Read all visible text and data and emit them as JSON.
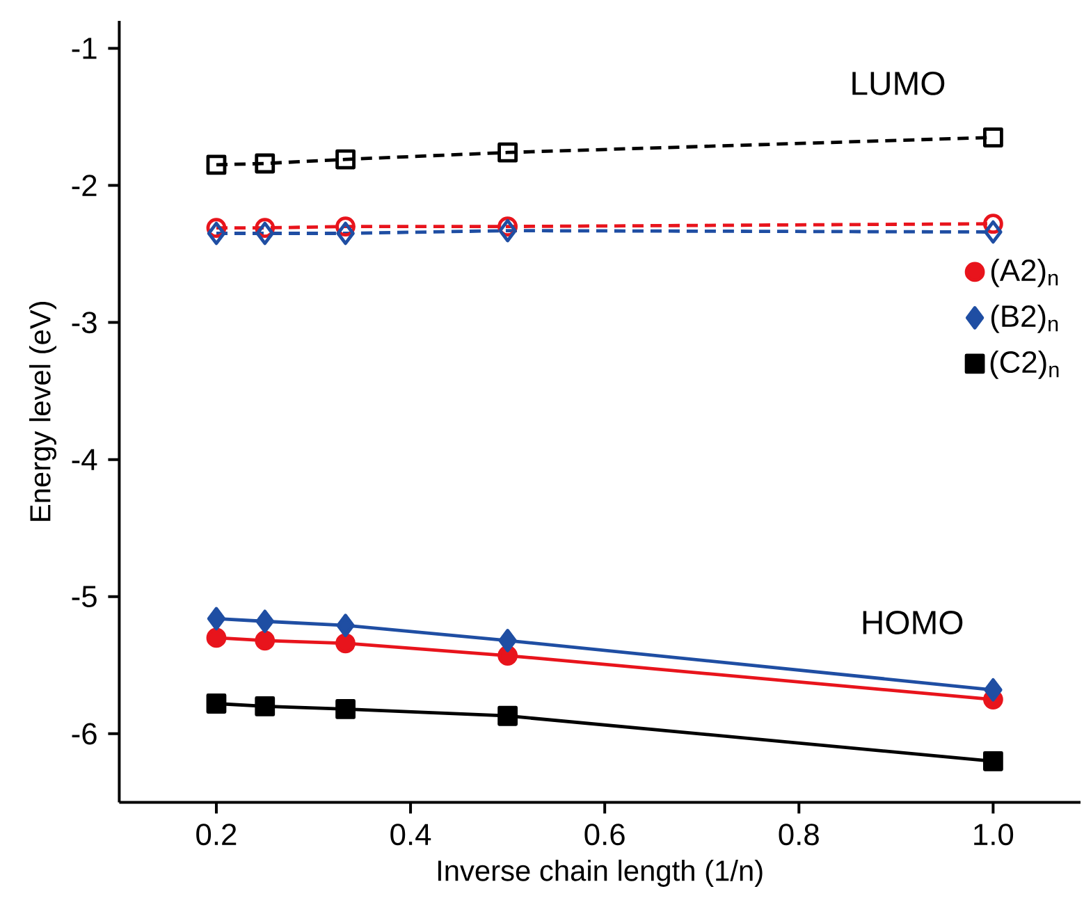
{
  "chart_data": {
    "type": "line",
    "xlabel": "Inverse chain length (1/n)",
    "ylabel": "Energy level (eV)",
    "x": [
      0.2,
      0.25,
      0.333,
      0.5,
      1.0
    ],
    "xlim": [
      0.1,
      1.09
    ],
    "ylim": [
      -6.5,
      -0.8
    ],
    "xticks": [
      0.2,
      0.4,
      0.6,
      0.8,
      {
        "value": 1.0,
        "label": "1.0"
      }
    ],
    "yticks": [
      -6,
      -5,
      -4,
      -3,
      -2,
      -1
    ],
    "legend": "right",
    "grid": false,
    "annotations": [
      "LUMO",
      "HOMO"
    ],
    "series": [
      {
        "name": "(A2)$_{n}$",
        "color": "#e8141c",
        "marker": "circle",
        "line_style": "solid",
        "values": [
          -5.3,
          -5.32,
          -5.34,
          -5.43,
          -5.75
        ]
      },
      {
        "name": "(B2)$_{n}$",
        "color": "#1f4ea3",
        "marker": "diamond",
        "line_style": "solid",
        "values": [
          -5.16,
          -5.18,
          -5.21,
          -5.32,
          -5.68
        ]
      },
      {
        "name": "(C2)$_{n}$",
        "color": "#000000",
        "marker": "square",
        "line_style": "solid",
        "values": [
          -5.78,
          -5.8,
          -5.82,
          -5.87,
          -6.2
        ]
      },
      {
        "color": "#e8141c",
        "marker": "circle",
        "line_style": "dashed",
        "values": [
          -2.31,
          -2.31,
          -2.3,
          -2.3,
          -2.28
        ]
      },
      {
        "color": "#1f4ea3",
        "marker": "diamond",
        "line_style": "dashed",
        "values": [
          -2.35,
          -2.35,
          -2.35,
          -2.33,
          -2.34
        ]
      },
      {
        "color": "#000000",
        "marker": "square",
        "line_style": "dashed",
        "values": [
          -1.85,
          -1.84,
          -1.81,
          -1.76,
          -1.65
        ]
      }
    ]
  }
}
